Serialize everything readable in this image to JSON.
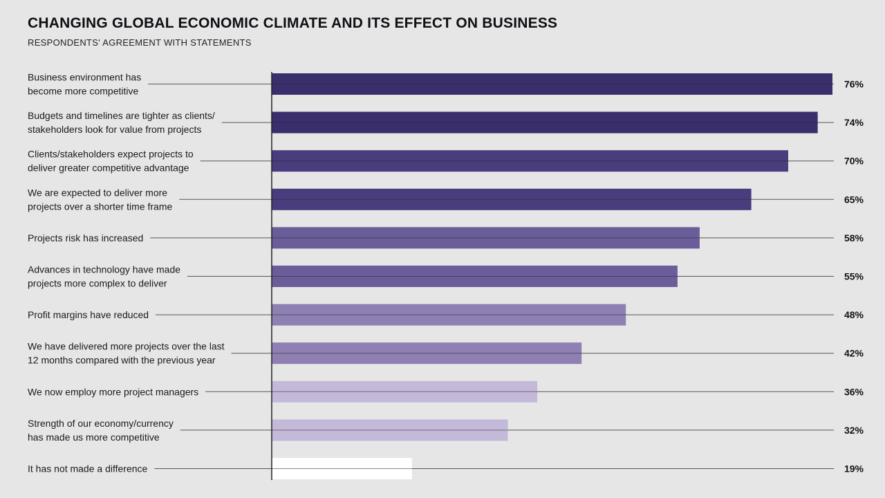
{
  "header": {
    "title": "CHANGING GLOBAL ECONOMIC CLIMATE AND ITS EFFECT ON BUSINESS",
    "subtitle": "RESPONDENTS' AGREEMENT WITH STATEMENTS"
  },
  "chart_data": {
    "type": "bar",
    "orientation": "horizontal",
    "title": "CHANGING GLOBAL ECONOMIC CLIMATE AND ITS EFFECT ON BUSINESS",
    "subtitle": "RESPONDENTS' AGREEMENT WITH STATEMENTS",
    "xlim": [
      0,
      76
    ],
    "grid": false,
    "legend": "none",
    "categories": [
      [
        "Business environment has",
        "become more competitive"
      ],
      [
        "Budgets and timelines are tighter as clients/",
        "stakeholders look for value from projects"
      ],
      [
        "Clients/stakeholders expect projects to",
        "deliver greater competitive advantage"
      ],
      [
        "We are expected to deliver more",
        "projects over a shorter time frame"
      ],
      [
        "Projects risk has increased"
      ],
      [
        "Advances in technology have made",
        "projects more complex to deliver"
      ],
      [
        "Profit margins have reduced"
      ],
      [
        "We have delivered more projects over the last",
        "12 months compared with the previous year"
      ],
      [
        "We now employ more project managers"
      ],
      [
        "Strength of our economy/currency",
        "has made us more competitive"
      ],
      [
        "It has not made a difference"
      ]
    ],
    "values": [
      76,
      74,
      70,
      65,
      58,
      55,
      48,
      42,
      36,
      32,
      19
    ],
    "value_labels": [
      "76%",
      "74%",
      "70%",
      "65%",
      "58%",
      "55%",
      "48%",
      "42%",
      "36%",
      "32%",
      "19%"
    ],
    "colors": [
      "#3b2e6d",
      "#3b2e6d",
      "#4a3d7e",
      "#4a3d7e",
      "#6b5d99",
      "#6b5d99",
      "#8e80b3",
      "#8e80b3",
      "#c4b9d9",
      "#c4b9d9",
      "#ffffff"
    ]
  }
}
